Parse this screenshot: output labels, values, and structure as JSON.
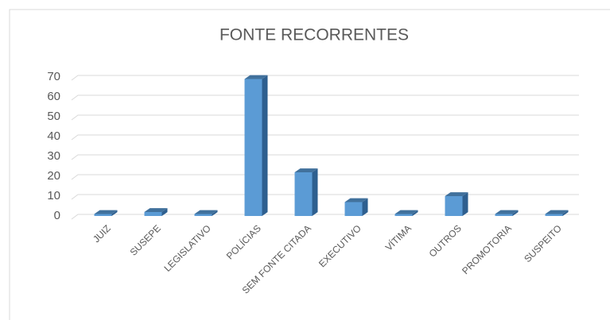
{
  "chart_data": {
    "type": "bar3d",
    "title": "FONTE RECORRENTES",
    "categories": [
      "JUIZ",
      "SUSEPE",
      "LEGISLATIVO",
      "POLÍCIAS",
      "SEM FONTE CITADA",
      "EXECUTIVO",
      "VÍTIMA",
      "OUTROS",
      "PROMOTORIA",
      "SUSPEITO"
    ],
    "values": [
      1,
      2,
      1,
      69,
      22,
      7,
      1,
      10,
      1,
      1
    ],
    "color": "#5b9bd5",
    "ylim": [
      0,
      70
    ],
    "yticks": [
      0,
      10,
      20,
      30,
      40,
      50,
      60,
      70
    ],
    "grid": true
  }
}
